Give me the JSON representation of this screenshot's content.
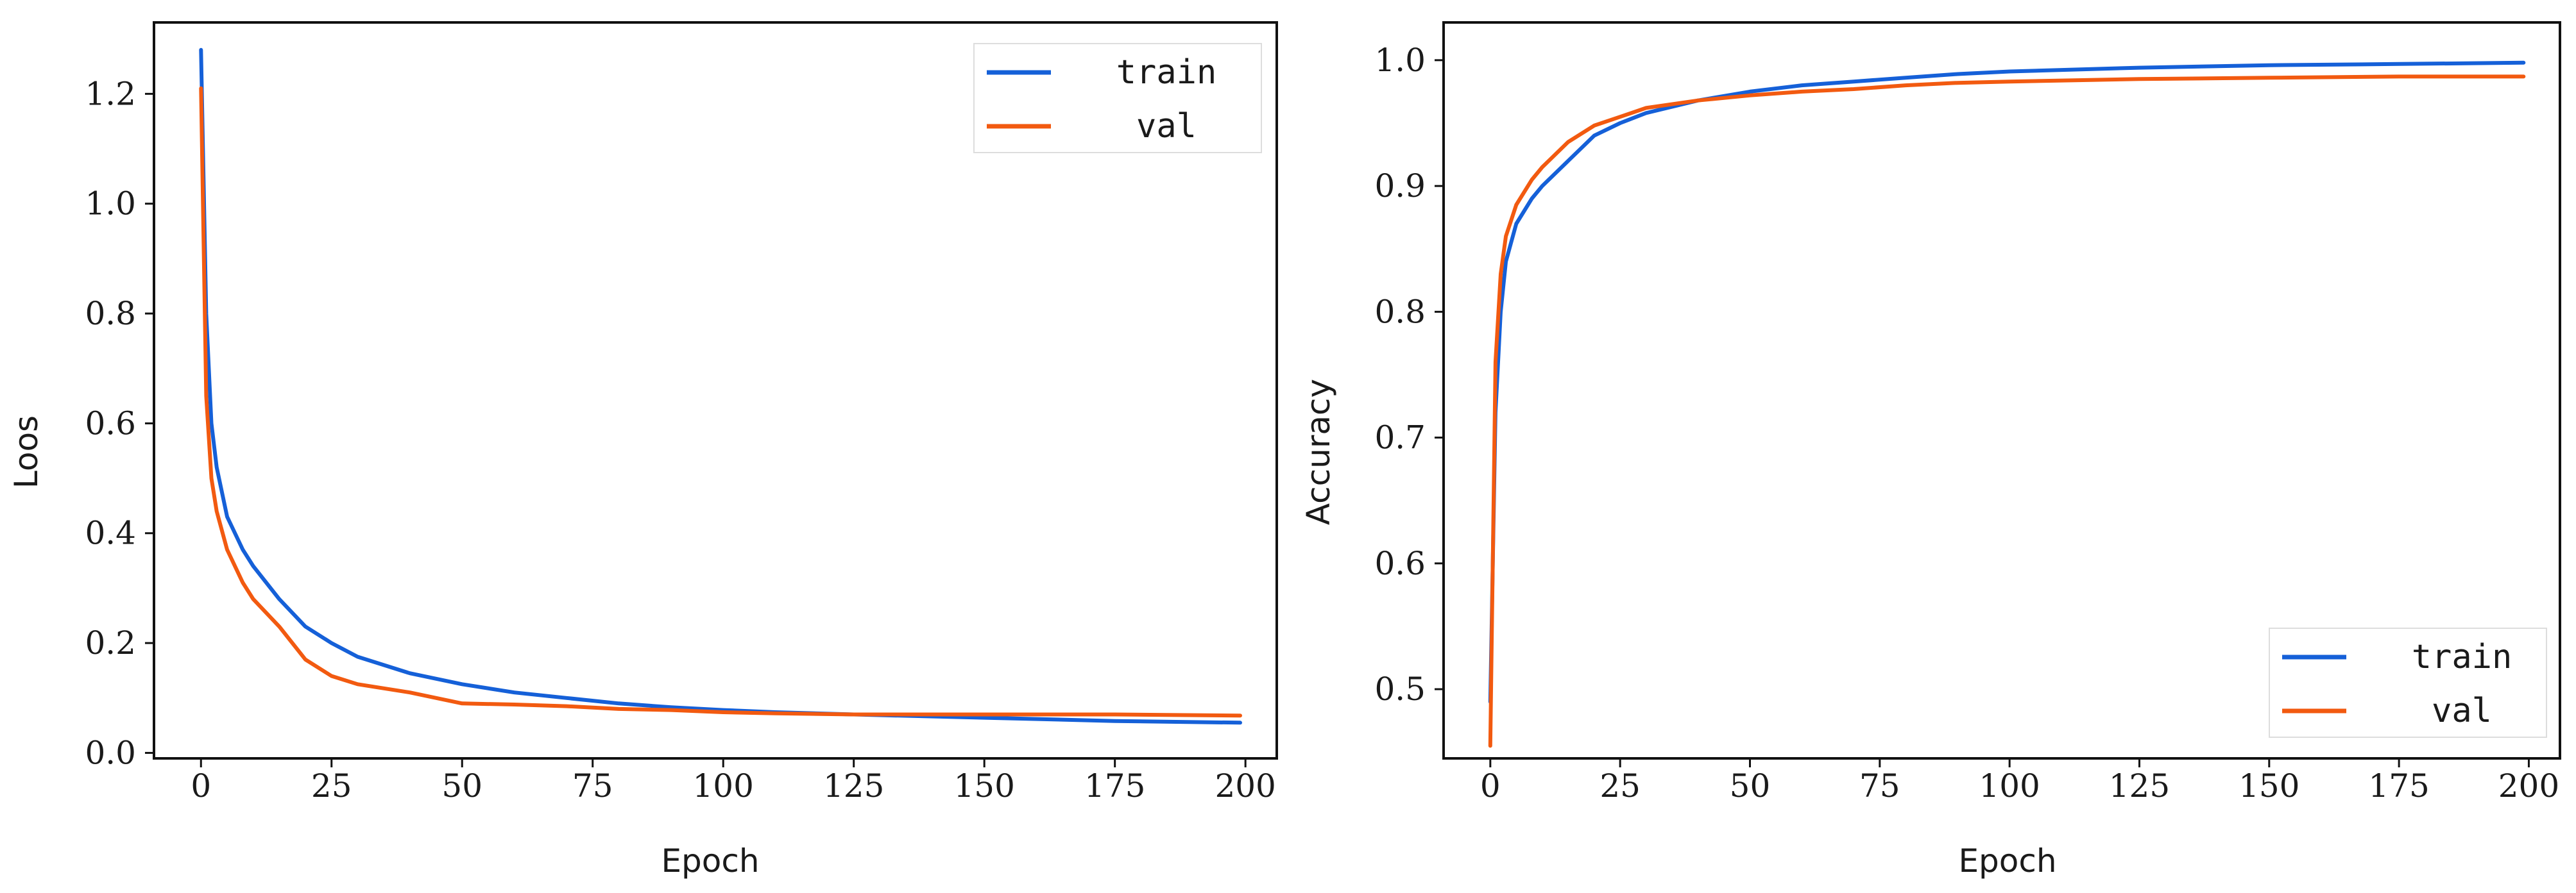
{
  "chart_data": [
    {
      "type": "line",
      "title": "",
      "xlabel": "Epoch",
      "ylabel": "Loos",
      "xlim": [
        -9,
        206
      ],
      "ylim": [
        -0.01,
        1.33
      ],
      "xticks": [
        0,
        25,
        50,
        75,
        100,
        125,
        150,
        175,
        200
      ],
      "yticks": [
        0.0,
        0.2,
        0.4,
        0.6,
        0.8,
        1.0,
        1.2
      ],
      "xtick_labels": [
        "0",
        "25",
        "50",
        "75",
        "100",
        "125",
        "150",
        "175",
        "200"
      ],
      "ytick_labels": [
        "0.0",
        "0.2",
        "0.4",
        "0.6",
        "0.8",
        "1.0",
        "1.2"
      ],
      "legend_position": "top-right",
      "series": [
        {
          "name": "train",
          "color": "#1560d8",
          "x": [
            0,
            1,
            2,
            3,
            5,
            8,
            10,
            15,
            20,
            25,
            30,
            40,
            50,
            60,
            70,
            80,
            90,
            100,
            110,
            125,
            150,
            175,
            199
          ],
          "y": [
            1.28,
            0.8,
            0.6,
            0.52,
            0.43,
            0.37,
            0.34,
            0.28,
            0.23,
            0.2,
            0.175,
            0.145,
            0.125,
            0.11,
            0.1,
            0.09,
            0.083,
            0.078,
            0.074,
            0.07,
            0.064,
            0.058,
            0.055
          ]
        },
        {
          "name": "val",
          "color": "#f25a10",
          "x": [
            0,
            1,
            2,
            3,
            5,
            8,
            10,
            15,
            20,
            25,
            30,
            40,
            50,
            60,
            70,
            80,
            90,
            100,
            110,
            125,
            150,
            175,
            199
          ],
          "y": [
            1.21,
            0.65,
            0.5,
            0.44,
            0.37,
            0.31,
            0.28,
            0.23,
            0.17,
            0.14,
            0.125,
            0.11,
            0.09,
            0.088,
            0.085,
            0.08,
            0.078,
            0.074,
            0.072,
            0.07,
            0.07,
            0.07,
            0.068
          ]
        }
      ]
    },
    {
      "type": "line",
      "title": "",
      "xlabel": "Epoch",
      "ylabel": "Accuracy",
      "xlim": [
        -9,
        206
      ],
      "ylim": [
        0.445,
        1.03
      ],
      "xticks": [
        0,
        25,
        50,
        75,
        100,
        125,
        150,
        175,
        200
      ],
      "yticks": [
        0.5,
        0.6,
        0.7,
        0.8,
        0.9,
        1.0
      ],
      "xtick_labels": [
        "0",
        "25",
        "50",
        "75",
        "100",
        "125",
        "150",
        "175",
        "200"
      ],
      "ytick_labels": [
        "0.5",
        "0.6",
        "0.7",
        "0.8",
        "0.9",
        "1.0"
      ],
      "legend_position": "bottom-right",
      "series": [
        {
          "name": "train",
          "color": "#1560d8",
          "x": [
            0,
            1,
            2,
            3,
            5,
            8,
            10,
            15,
            20,
            25,
            30,
            40,
            50,
            60,
            70,
            80,
            90,
            100,
            125,
            150,
            175,
            199
          ],
          "y": [
            0.49,
            0.72,
            0.8,
            0.84,
            0.87,
            0.89,
            0.9,
            0.92,
            0.94,
            0.95,
            0.958,
            0.968,
            0.975,
            0.98,
            0.983,
            0.986,
            0.989,
            0.991,
            0.994,
            0.996,
            0.997,
            0.998
          ]
        },
        {
          "name": "val",
          "color": "#f25a10",
          "x": [
            0,
            1,
            2,
            3,
            5,
            8,
            10,
            15,
            20,
            25,
            30,
            40,
            50,
            60,
            70,
            80,
            90,
            100,
            125,
            150,
            175,
            199
          ],
          "y": [
            0.455,
            0.76,
            0.83,
            0.86,
            0.885,
            0.905,
            0.915,
            0.935,
            0.948,
            0.955,
            0.962,
            0.968,
            0.972,
            0.975,
            0.977,
            0.98,
            0.982,
            0.983,
            0.985,
            0.986,
            0.987,
            0.987
          ]
        }
      ]
    }
  ]
}
